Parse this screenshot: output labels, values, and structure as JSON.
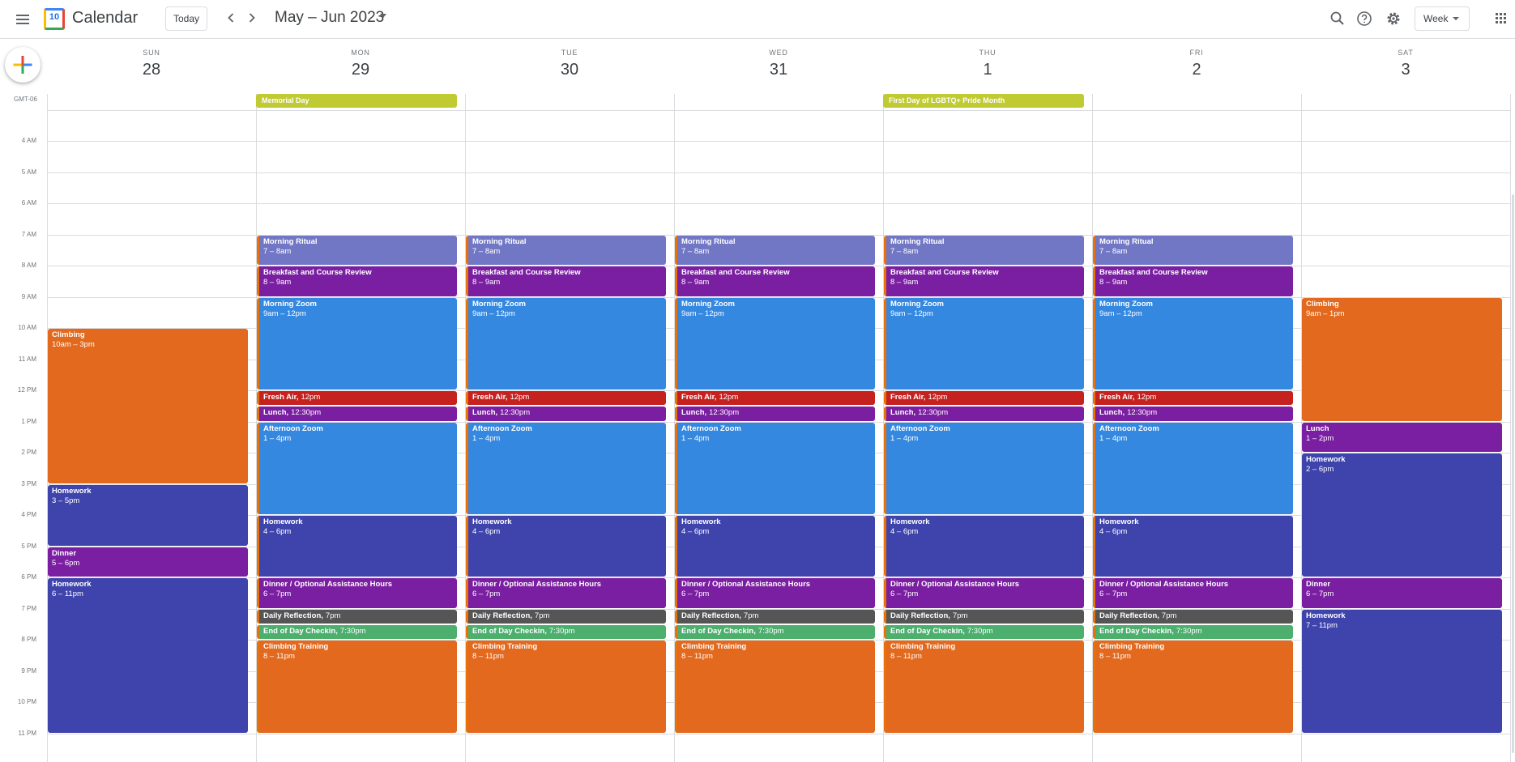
{
  "header": {
    "app_title": "Calendar",
    "logo_number": "10",
    "today_label": "Today",
    "prev_icon": "chevron-left-icon",
    "next_icon": "chevron-right-icon",
    "date_range": "May – Jun 2023",
    "view_label": "Week"
  },
  "timezone": "GMT-06",
  "days": [
    {
      "dow": "SUN",
      "num": "28"
    },
    {
      "dow": "MON",
      "num": "29"
    },
    {
      "dow": "TUE",
      "num": "30"
    },
    {
      "dow": "WED",
      "num": "31"
    },
    {
      "dow": "THU",
      "num": "1"
    },
    {
      "dow": "FRI",
      "num": "2"
    },
    {
      "dow": "SAT",
      "num": "3"
    }
  ],
  "all_day_events": [
    {
      "day": 1,
      "title": "Memorial Day",
      "color": "#c0ca33"
    },
    {
      "day": 4,
      "title": "First Day of LGBTQ+ Pride Month",
      "color": "#c0ca33"
    }
  ],
  "hours": [
    "4 AM",
    "5 AM",
    "6 AM",
    "7 AM",
    "8 AM",
    "9 AM",
    "10 AM",
    "11 AM",
    "12 PM",
    "1 PM",
    "2 PM",
    "3 PM",
    "4 PM",
    "5 PM",
    "6 PM",
    "7 PM",
    "8 PM",
    "9 PM",
    "10 PM",
    "11 PM"
  ],
  "colors": {
    "lavender": "#7177c5",
    "grape": "#7b1fa2",
    "peacock": "#3588e0",
    "tomato": "#c5221f",
    "blueberry": "#3f44ad",
    "graphite": "#555555",
    "sage": "#4caf6e",
    "tangerine": "#e2691e"
  },
  "weekday_events": [
    {
      "title": "Morning Ritual",
      "time": "7 – 8am",
      "start": 7,
      "end": 8,
      "color": "#7177c5"
    },
    {
      "title": "Breakfast and Course Review",
      "time": "8 – 9am",
      "start": 8,
      "end": 9,
      "color": "#7b1fa2"
    },
    {
      "title": "Morning Zoom",
      "time": "9am – 12pm",
      "start": 9,
      "end": 12,
      "color": "#3588e0"
    },
    {
      "title": "Fresh Air",
      "time": "12pm",
      "start": 12,
      "end": 12.5,
      "color": "#c5221f",
      "one_line": true
    },
    {
      "title": "Lunch",
      "time": "12:30pm",
      "start": 12.5,
      "end": 13,
      "color": "#7b1fa2",
      "one_line": true
    },
    {
      "title": "Afternoon Zoom",
      "time": "1 – 4pm",
      "start": 13,
      "end": 16,
      "color": "#3588e0"
    },
    {
      "title": "Homework",
      "time": "4 – 6pm",
      "start": 16,
      "end": 18,
      "color": "#3f44ad"
    },
    {
      "title": "Dinner / Optional Assistance Hours",
      "time": "6 – 7pm",
      "start": 18,
      "end": 19,
      "color": "#7b1fa2"
    },
    {
      "title": "Daily Reflection",
      "time": "7pm",
      "start": 19,
      "end": 19.5,
      "color": "#555555",
      "one_line": true
    },
    {
      "title": "End of Day Checkin",
      "time": "7:30pm",
      "start": 19.5,
      "end": 20,
      "color": "#4caf6e",
      "one_line": true
    },
    {
      "title": "Climbing Training",
      "time": "8 – 11pm",
      "start": 20,
      "end": 23,
      "color": "#e2691e"
    }
  ],
  "sunday_events": [
    {
      "title": "Climbing",
      "time": "10am – 3pm",
      "start": 10,
      "end": 15,
      "color": "#e2691e"
    },
    {
      "title": "Homework",
      "time": "3 – 5pm",
      "start": 15,
      "end": 17,
      "color": "#3f44ad"
    },
    {
      "title": "Dinner",
      "time": "5 – 6pm",
      "start": 17,
      "end": 18,
      "color": "#7b1fa2"
    },
    {
      "title": "Homework",
      "time": "6 – 11pm",
      "start": 18,
      "end": 23,
      "color": "#3f44ad"
    }
  ],
  "saturday_events": [
    {
      "title": "Climbing",
      "time": "9am – 1pm",
      "start": 9,
      "end": 13,
      "color": "#e2691e"
    },
    {
      "title": "Lunch",
      "time": "1 – 2pm",
      "start": 13,
      "end": 14,
      "color": "#7b1fa2"
    },
    {
      "title": "Homework",
      "time": "2 – 6pm",
      "start": 14,
      "end": 18,
      "color": "#3f44ad"
    },
    {
      "title": "Dinner",
      "time": "6 – 7pm",
      "start": 18,
      "end": 19,
      "color": "#7b1fa2"
    },
    {
      "title": "Homework",
      "time": "7 – 11pm",
      "start": 19,
      "end": 23,
      "color": "#3f44ad"
    }
  ]
}
